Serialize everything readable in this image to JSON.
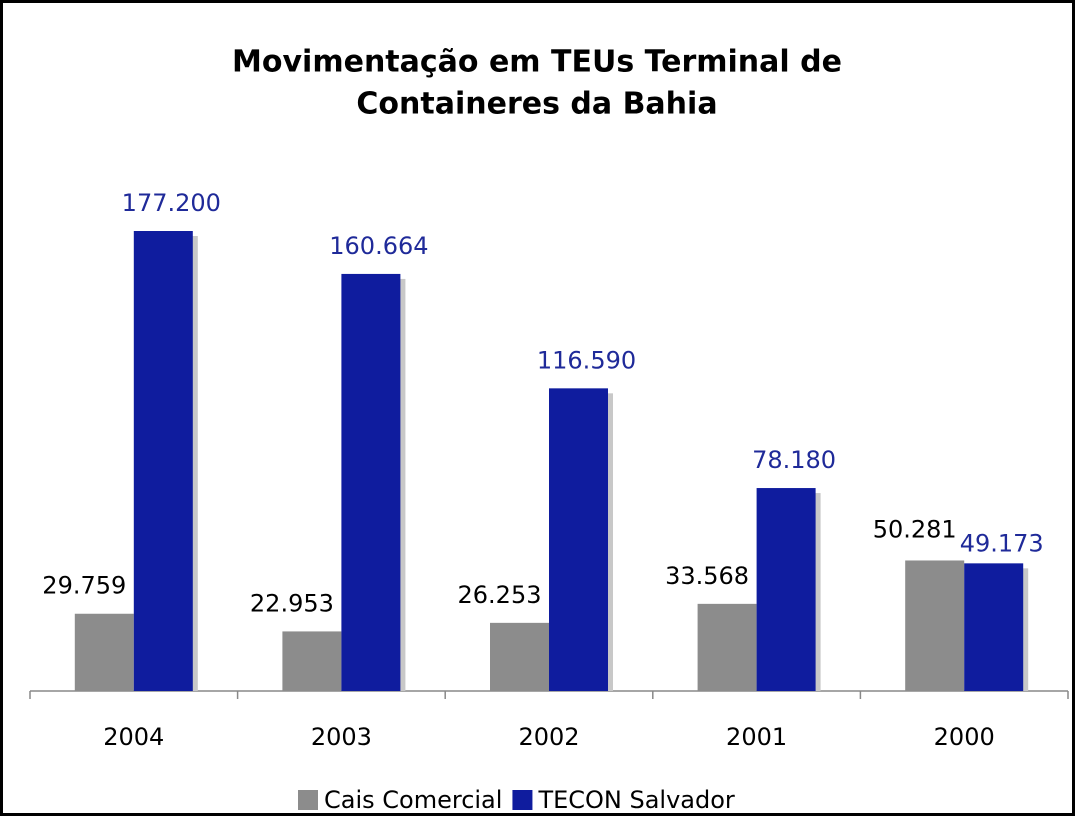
{
  "chart_data": {
    "type": "bar",
    "title": "Movimentação em TEUs Terminal de Containeres da Bahia",
    "categories": [
      "2004",
      "2003",
      "2002",
      "2001",
      "2000"
    ],
    "series": [
      {
        "name": "Cais Comercial",
        "color": "#8c8c8c",
        "values": [
          29759,
          22953,
          26253,
          33568,
          50281
        ],
        "value_labels": [
          "29.759",
          "22.953",
          "26.253",
          "33.568",
          "50.281"
        ],
        "label_color": "#000000"
      },
      {
        "name": "TECON Salvador",
        "color": "#0f1c9e",
        "values": [
          177200,
          160664,
          116590,
          78180,
          49173
        ],
        "value_labels": [
          "177.200",
          "160.664",
          "116.590",
          "78.180",
          "49.173"
        ],
        "label_color": "#1f2a99"
      }
    ],
    "legend": "bottom"
  }
}
